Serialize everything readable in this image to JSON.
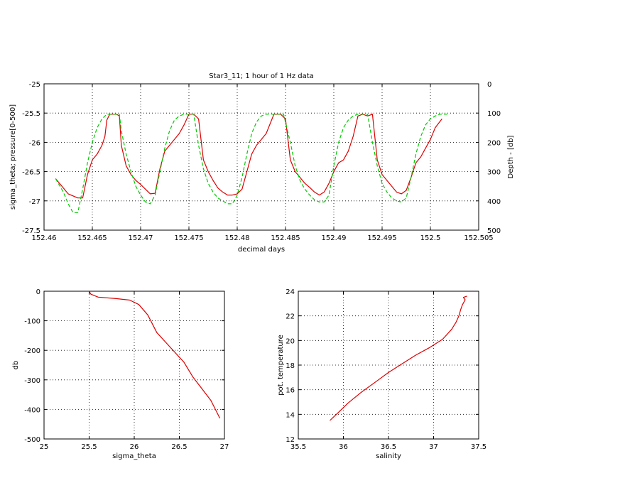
{
  "chart_data": [
    {
      "type": "line",
      "title": "Star3_11; 1 hour of 1 Hz data",
      "xlabel": "decimal days",
      "ylabel": "sigma_theta; pressure[0-500]",
      "ylabel_right": "Depth - [db]",
      "xlim": [
        152.46,
        152.505
      ],
      "ylim": [
        -27.5,
        -25
      ],
      "ylim_right": [
        0,
        500
      ],
      "x_ticks": [
        "152.46",
        "152.465",
        "152.47",
        "152.475",
        "152.48",
        "152.485",
        "152.49",
        "152.495",
        "152.5",
        "152.505"
      ],
      "y_ticks": [
        "-25",
        "-25.5",
        "-26",
        "-26.5",
        "-27",
        "-27.5"
      ],
      "y_ticks_right": [
        "0",
        "100",
        "200",
        "300",
        "400",
        "500"
      ],
      "grid": true,
      "series": [
        {
          "color": "#dd0000",
          "style": "solid",
          "x": [
            152.4612,
            152.4625,
            152.4635,
            152.464,
            152.4645,
            152.465,
            152.4655,
            152.466,
            152.4663,
            152.4665,
            152.4668,
            152.4675,
            152.4678,
            152.468,
            152.4685,
            152.469,
            152.4695,
            152.47,
            152.4705,
            152.471,
            152.4715,
            152.472,
            152.4725,
            152.473,
            152.4735,
            152.474,
            152.4745,
            152.475,
            152.4755,
            152.476,
            152.4765,
            152.477,
            152.4775,
            152.478,
            152.4785,
            152.479,
            152.4795,
            152.48,
            152.4805,
            152.481,
            152.4815,
            152.482,
            152.4825,
            152.483,
            152.4838,
            152.4845,
            152.485,
            152.4855,
            152.486,
            152.4865,
            152.487,
            152.4875,
            152.488,
            152.4885,
            152.489,
            152.4895,
            152.49,
            152.4905,
            152.491,
            152.4915,
            152.492,
            152.4925,
            152.493,
            152.4935,
            152.494,
            152.4945,
            152.495,
            152.4955,
            152.496,
            152.4965,
            152.497,
            152.4975,
            152.498,
            152.4985,
            152.499,
            152.4995,
            152.5,
            152.5005,
            152.5012
          ],
          "y": [
            -26.62,
            -26.88,
            -26.95,
            -26.95,
            -26.55,
            -26.3,
            -26.2,
            -26.05,
            -25.9,
            -25.62,
            -25.52,
            -25.52,
            -25.55,
            -26.05,
            -26.4,
            -26.55,
            -26.65,
            -26.72,
            -26.8,
            -26.88,
            -26.87,
            -26.45,
            -26.15,
            -26.05,
            -25.95,
            -25.85,
            -25.7,
            -25.52,
            -25.52,
            -25.6,
            -26.3,
            -26.5,
            -26.65,
            -26.78,
            -26.85,
            -26.9,
            -26.9,
            -26.88,
            -26.8,
            -26.5,
            -26.2,
            -26.05,
            -25.95,
            -25.85,
            -25.52,
            -25.52,
            -25.6,
            -26.3,
            -26.5,
            -26.6,
            -26.7,
            -26.77,
            -26.85,
            -26.9,
            -26.85,
            -26.7,
            -26.5,
            -26.35,
            -26.3,
            -26.15,
            -25.9,
            -25.55,
            -25.52,
            -25.55,
            -25.52,
            -26.3,
            -26.55,
            -26.65,
            -26.75,
            -26.85,
            -26.88,
            -26.82,
            -26.6,
            -26.35,
            -26.25,
            -26.1,
            -25.95,
            -25.75,
            -25.6
          ]
        },
        {
          "color": "#00cc00",
          "style": "dashed",
          "x": [
            152.4612,
            152.462,
            152.4625,
            152.463,
            152.4635,
            152.464,
            152.4645,
            152.465,
            152.4655,
            152.466,
            152.4665,
            152.4678,
            152.468,
            152.4685,
            152.469,
            152.4695,
            152.47,
            152.4705,
            152.471,
            152.4715,
            152.472,
            152.4725,
            152.473,
            152.4735,
            152.474,
            152.4745,
            152.4755,
            152.476,
            152.4765,
            152.477,
            152.4775,
            152.478,
            152.4785,
            152.479,
            152.4795,
            152.48,
            152.4805,
            152.481,
            152.4815,
            152.482,
            152.4825,
            152.483,
            152.4848,
            152.4855,
            152.486,
            152.4865,
            152.487,
            152.4875,
            152.488,
            152.4885,
            152.489,
            152.4895,
            152.49,
            152.4905,
            152.491,
            152.4915,
            152.492,
            152.4925,
            152.4935,
            152.494,
            152.4945,
            152.495,
            152.4955,
            152.496,
            152.4965,
            152.497,
            152.4975,
            152.498,
            152.4985,
            152.499,
            152.4995,
            152.5,
            152.5005,
            152.501,
            152.502
          ],
          "y": [
            -26.62,
            -26.85,
            -27.05,
            -27.2,
            -27.2,
            -26.8,
            -26.35,
            -26.0,
            -25.75,
            -25.6,
            -25.52,
            -25.52,
            -25.8,
            -26.2,
            -26.5,
            -26.75,
            -26.9,
            -27.02,
            -27.05,
            -26.9,
            -26.5,
            -26.1,
            -25.8,
            -25.62,
            -25.55,
            -25.52,
            -25.52,
            -26.05,
            -26.45,
            -26.7,
            -26.85,
            -26.95,
            -27.0,
            -27.05,
            -27.05,
            -26.9,
            -26.6,
            -26.2,
            -25.85,
            -25.65,
            -25.55,
            -25.52,
            -25.52,
            -26.0,
            -26.4,
            -26.65,
            -26.8,
            -26.9,
            -26.98,
            -27.02,
            -27.02,
            -26.9,
            -26.4,
            -26.0,
            -25.75,
            -25.62,
            -25.55,
            -25.52,
            -25.52,
            -26.0,
            -26.4,
            -26.7,
            -26.85,
            -26.95,
            -27.0,
            -27.02,
            -26.95,
            -26.6,
            -26.2,
            -25.9,
            -25.7,
            -25.6,
            -25.55,
            -25.52,
            -25.52
          ]
        }
      ]
    },
    {
      "type": "line",
      "title": "",
      "xlabel": "sigma_theta",
      "ylabel": "db",
      "xlim": [
        25,
        27
      ],
      "ylim": [
        -500,
        0
      ],
      "x_ticks": [
        "25",
        "25.5",
        "26",
        "26.5",
        "27"
      ],
      "y_ticks": [
        "0",
        "-100",
        "-200",
        "-300",
        "-400",
        "-500"
      ],
      "grid": true,
      "series": [
        {
          "color": "#dd0000",
          "x": [
            25.5,
            25.52,
            25.6,
            25.8,
            25.95,
            26.05,
            26.15,
            26.25,
            26.4,
            26.55,
            26.65,
            26.75,
            26.85,
            26.95
          ],
          "y": [
            0,
            -10,
            -20,
            -25,
            -30,
            -45,
            -80,
            -140,
            -190,
            -240,
            -290,
            -330,
            -370,
            -430
          ]
        }
      ]
    },
    {
      "type": "line",
      "title": "",
      "xlabel": "salinity",
      "ylabel": "pot. temperature",
      "xlim": [
        35.5,
        37.5
      ],
      "ylim": [
        12,
        24
      ],
      "x_ticks": [
        "35.5",
        "36",
        "36.5",
        "37",
        "37.5"
      ],
      "y_ticks": [
        "12",
        "14",
        "16",
        "18",
        "20",
        "22",
        "24"
      ],
      "grid": true,
      "series": [
        {
          "color": "#dd0000",
          "x": [
            35.85,
            35.95,
            36.05,
            36.2,
            36.35,
            36.5,
            36.65,
            36.8,
            36.95,
            37.1,
            37.2,
            37.25,
            37.28,
            37.3,
            37.32,
            37.35,
            37.33,
            37.37
          ],
          "y": [
            13.5,
            14.2,
            14.9,
            15.8,
            16.6,
            17.4,
            18.1,
            18.8,
            19.4,
            20.1,
            20.9,
            21.5,
            22.0,
            22.5,
            22.9,
            23.3,
            23.5,
            23.6
          ]
        }
      ]
    }
  ]
}
